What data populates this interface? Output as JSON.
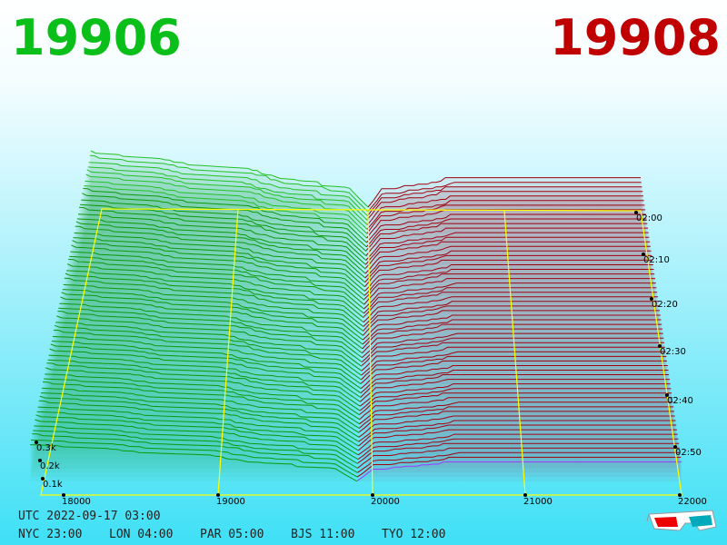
{
  "header": {
    "bid_price": "19906",
    "ask_price": "19908"
  },
  "depth_axis": {
    "labels": [
      "0.3k",
      "0.2k",
      "0.1k"
    ]
  },
  "price_axis": {
    "labels": [
      "18000",
      "19000",
      "20000",
      "21000",
      "22000"
    ]
  },
  "time_axis": {
    "labels": [
      "02:00",
      "02:10",
      "02:20",
      "02:30",
      "02:40",
      "02:50"
    ]
  },
  "clock": {
    "utc": "UTC 2022-09-17 03:00",
    "zones": [
      "NYC 23:00",
      "LON 04:00",
      "PAR 05:00",
      "BJS 11:00",
      "TYO 12:00"
    ]
  }
}
